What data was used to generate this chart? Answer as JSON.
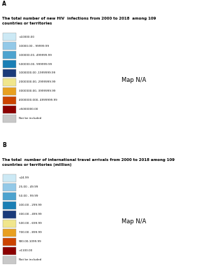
{
  "panel_A": {
    "label": "A",
    "title": "The total number of new HIV  infections from 2000 to 2018  among 109\ncountries or territories",
    "legend_entries": [
      {
        "label": "<10000.00",
        "color": "#cce9f5"
      },
      {
        "label": "10000.00 - 99999.99",
        "color": "#93c9e8"
      },
      {
        "label": "100000.00- 499999.99",
        "color": "#4da3cf"
      },
      {
        "label": "500000.00- 999999.99",
        "color": "#1a7fb5"
      },
      {
        "label": "1000000.00 -1999999.99",
        "color": "#1a3a7a"
      },
      {
        "label": "2000000.00- 2999999.99",
        "color": "#f0e68c"
      },
      {
        "label": "3000000.00- 3999999.99",
        "color": "#e8a020"
      },
      {
        "label": "4000000.000- 4999999.99",
        "color": "#cc4400"
      },
      {
        "label": ">5000000.00",
        "color": "#8b0000"
      },
      {
        "label": "Not be included",
        "color": "#c8c8c8"
      }
    ],
    "country_colors": {
      "South Africa": "#8b0000",
      "Nigeria": "#cc4400",
      "Mozambique": "#e8a020",
      "Tanzania": "#f0e68c",
      "United States of America": "#1a7fb5",
      "Kenya": "#1a3a7a",
      "Zimbabwe": "#1a3a7a",
      "Zambia": "#1a3a7a",
      "Uganda": "#1a3a7a",
      "Cameroon": "#1a7fb5",
      "Malawi": "#1a7fb5",
      "Ethiopia": "#1a7fb5",
      "India": "#1a7fb5",
      "Brazil": "#4da3cf",
      "Russia": "#4da3cf",
      "China": "#4da3cf",
      "Indonesia": "#4da3cf",
      "Thailand": "#4da3cf",
      "Dem. Rep. Congo": "#4da3cf",
      "Angola": "#4da3cf",
      "Botswana": "#4da3cf",
      "Ghana": "#4da3cf",
      "Ivory Coast": "#4da3cf",
      "Lesotho": "#4da3cf",
      "Eswatini": "#4da3cf",
      "Namibia": "#4da3cf",
      "Rwanda": "#4da3cf",
      "Burundi": "#4da3cf",
      "Canada": "#93c9e8",
      "Mexico": "#93c9e8",
      "France": "#93c9e8",
      "Germany": "#93c9e8",
      "United Kingdom": "#93c9e8",
      "Spain": "#93c9e8",
      "Italy": "#93c9e8",
      "Ukraine": "#93c9e8",
      "Argentina": "#93c9e8",
      "Colombia": "#93c9e8",
      "Peru": "#93c9e8",
      "Venezuela": "#93c9e8",
      "Myanmar": "#93c9e8",
      "Vietnam": "#93c9e8",
      "Papua New Guinea": "#93c9e8",
      "Sudan": "#93c9e8",
      "South Sudan": "#93c9e8",
      "Somalia": "#93c9e8",
      "Chad": "#93c9e8",
      "Niger": "#93c9e8",
      "Mali": "#93c9e8",
      "Senegal": "#93c9e8",
      "Burkina Faso": "#93c9e8",
      "Togo": "#93c9e8",
      "Benin": "#93c9e8",
      "Gabon": "#93c9e8",
      "Congo": "#93c9e8",
      "Central African Republic": "#93c9e8",
      "Liberia": "#93c9e8",
      "Sierra Leone": "#93c9e8",
      "Guinea": "#93c9e8",
      "Eritrea": "#93c9e8",
      "Djibouti": "#93c9e8",
      "Japan": "#cce9f5",
      "South Korea": "#cce9f5",
      "Australia": "#cce9f5",
      "New Zealand": "#cce9f5",
      "Norway": "#cce9f5",
      "Sweden": "#cce9f5",
      "Finland": "#cce9f5",
      "Denmark": "#cce9f5",
      "Netherlands": "#cce9f5",
      "Belgium": "#cce9f5",
      "Switzerland": "#cce9f5",
      "Austria": "#cce9f5",
      "Poland": "#cce9f5",
      "Czech Republic": "#cce9f5",
      "Czechia": "#cce9f5",
      "Portugal": "#cce9f5",
      "Greece": "#cce9f5",
      "Romania": "#cce9f5",
      "Morocco": "#cce9f5",
      "Tunisia": "#cce9f5",
      "Algeria": "#cce9f5",
      "Egypt": "#cce9f5",
      "Saudi Arabia": "#cce9f5",
      "Iran": "#cce9f5",
      "Turkey": "#cce9f5",
      "Pakistan": "#cce9f5",
      "Philippines": "#cce9f5",
      "Malaysia": "#cce9f5",
      "Belarus": "#cce9f5",
      "Hungary": "#cce9f5",
      "Slovakia": "#cce9f5",
      "Bulgaria": "#cce9f5",
      "Croatia": "#cce9f5",
      "Serbia": "#cce9f5",
      "Bosnia and Herzegovina": "#cce9f5",
      "Albania": "#cce9f5",
      "North Macedonia": "#cce9f5",
      "Moldova": "#cce9f5",
      "Latvia": "#cce9f5",
      "Lithuania": "#cce9f5",
      "Estonia": "#cce9f5",
      "Iceland": "#cce9f5",
      "Ireland": "#cce9f5",
      "Luxembourg": "#cce9f5",
      "Jordan": "#cce9f5",
      "Lebanon": "#cce9f5",
      "Israel": "#cce9f5",
      "Yemen": "#cce9f5",
      "Oman": "#cce9f5",
      "United Arab Emirates": "#cce9f5",
      "Kuwait": "#cce9f5",
      "Qatar": "#cce9f5",
      "Bahrain": "#cce9f5",
      "Kazakhstan": "#cce9f5",
      "Uzbekistan": "#cce9f5",
      "Kyrgyzstan": "#cce9f5",
      "Tajikistan": "#cce9f5",
      "Turkmenistan": "#cce9f5",
      "Afghanistan": "#cce9f5",
      "Sri Lanka": "#cce9f5",
      "Nepal": "#cce9f5",
      "Bangladesh": "#cce9f5",
      "Cambodia": "#cce9f5",
      "Laos": "#cce9f5",
      "Taiwan": "#cce9f5",
      "Mongolia": "#cce9f5",
      "North Korea": "#cce9f5",
      "Cuba": "#cce9f5",
      "Haiti": "#cce9f5",
      "Dominican Republic": "#cce9f5",
      "Jamaica": "#cce9f5",
      "Trinidad and Tobago": "#cce9f5",
      "Bolivia": "#cce9f5",
      "Ecuador": "#cce9f5",
      "Paraguay": "#cce9f5",
      "Uruguay": "#cce9f5",
      "Chile": "#cce9f5",
      "Honduras": "#cce9f5",
      "Guatemala": "#cce9f5",
      "Nicaragua": "#cce9f5",
      "Costa Rica": "#cce9f5",
      "Panama": "#cce9f5",
      "El Salvador": "#cce9f5",
      "Belize": "#cce9f5",
      "Libya": "#cce9f5",
      "Mauritania": "#cce9f5",
      "Western Sahara": "#cce9f5",
      "Madagascar": "#cce9f5",
      "Mauritius": "#cce9f5"
    }
  },
  "panel_B": {
    "label": "B",
    "title": "The total  number of international travel arrivals from 2000 to 2018 among 109\ncountries or territories (million)",
    "legend_entries": [
      {
        "label": "<24.99",
        "color": "#cce9f5"
      },
      {
        "label": "25.00 - 49.99",
        "color": "#93c9e8"
      },
      {
        "label": "50.00 - 99.99",
        "color": "#4da3cf"
      },
      {
        "label": "100.00 - 299.99",
        "color": "#1a7fb5"
      },
      {
        "label": "300.00 - 499.99",
        "color": "#1a3a7a"
      },
      {
        "label": "500.00 - 699.99",
        "color": "#f0e68c"
      },
      {
        "label": "700.00 - 899.99",
        "color": "#e8a020"
      },
      {
        "label": "900.00-1099.99",
        "color": "#cc4400"
      },
      {
        "label": ">1100.00",
        "color": "#8b0000"
      },
      {
        "label": "Not be included",
        "color": "#c8c8c8"
      }
    ],
    "country_colors": {
      "United States of America": "#8b0000",
      "China": "#cc4400",
      "France": "#f0e68c",
      "Spain": "#1a3a7a",
      "Germany": "#1a3a7a",
      "Italy": "#1a3a7a",
      "United Kingdom": "#1a3a7a",
      "Australia": "#1a7fb5",
      "Canada": "#1a7fb5",
      "Mexico": "#1a7fb5",
      "Russia": "#1a7fb5",
      "Turkey": "#1a7fb5",
      "Thailand": "#4da3cf",
      "Japan": "#1a7fb5",
      "Brazil": "#4da3cf",
      "Austria": "#4da3cf",
      "Netherlands": "#4da3cf",
      "Portugal": "#4da3cf",
      "Greece": "#4da3cf",
      "Saudi Arabia": "#4da3cf",
      "Malaysia": "#4da3cf",
      "South Korea": "#4da3cf",
      "India": "#4da3cf",
      "Poland": "#4da3cf",
      "Morocco": "#4da3cf",
      "Hungary": "#4da3cf",
      "Ukraine": "#93c9e8",
      "Argentina": "#93c9e8",
      "Egypt": "#93c9e8",
      "South Africa": "#93c9e8",
      "Tunisia": "#93c9e8",
      "Iran": "#93c9e8",
      "Indonesia": "#93c9e8",
      "Sweden": "#93c9e8",
      "Belgium": "#93c9e8",
      "Switzerland": "#93c9e8",
      "Czech Republic": "#93c9e8",
      "Czechia": "#93c9e8",
      "Denmark": "#93c9e8",
      "Colombia": "#93c9e8",
      "Peru": "#93c9e8",
      "Vietnam": "#93c9e8",
      "Philippines": "#93c9e8",
      "Algeria": "#93c9e8",
      "Croatia": "#93c9e8",
      "Romania": "#cce9f5",
      "Kazakhstan": "#93c9e8",
      "Jordan": "#93c9e8",
      "Lebanon": "#93c9e8",
      "Israel": "#93c9e8",
      "United Arab Emirates": "#93c9e8",
      "Singapore": "#93c9e8",
      "Norway": "#cce9f5",
      "Finland": "#cce9f5",
      "New Zealand": "#cce9f5",
      "Venezuela": "#cce9f5",
      "Chile": "#cce9f5",
      "Kenya": "#cce9f5",
      "Nigeria": "#cce9f5",
      "Tanzania": "#cce9f5",
      "Ethiopia": "#cce9f5",
      "Ghana": "#cce9f5",
      "Myanmar": "#cce9f5",
      "Pakistan": "#cce9f5",
      "Sudan": "#cce9f5",
      "Bolivia": "#cce9f5",
      "Ecuador": "#cce9f5",
      "Paraguay": "#cce9f5",
      "Uruguay": "#cce9f5",
      "Honduras": "#cce9f5",
      "Guatemala": "#cce9f5",
      "Nicaragua": "#cce9f5",
      "Costa Rica": "#cce9f5",
      "Panama": "#cce9f5",
      "El Salvador": "#cce9f5",
      "Cuba": "#cce9f5",
      "Dominican Republic": "#cce9f5",
      "Jamaica": "#cce9f5",
      "Haiti": "#cce9f5",
      "Iceland": "#cce9f5",
      "Ireland": "#cce9f5",
      "Luxembourg": "#cce9f5",
      "Slovakia": "#cce9f5",
      "Bulgaria": "#cce9f5",
      "Serbia": "#cce9f5",
      "Bosnia and Herzegovina": "#cce9f5",
      "Albania": "#cce9f5",
      "Latvia": "#cce9f5",
      "Lithuania": "#cce9f5",
      "Estonia": "#cce9f5",
      "Belarus": "#cce9f5",
      "Moldova": "#cce9f5",
      "North Macedonia": "#cce9f5",
      "Oman": "#cce9f5",
      "Qatar": "#cce9f5",
      "Kuwait": "#cce9f5",
      "Bahrain": "#cce9f5",
      "Yemen": "#cce9f5",
      "Iraq": "#cce9f5",
      "Libya": "#cce9f5",
      "Uzbekistan": "#cce9f5",
      "Kyrgyzstan": "#cce9f5",
      "Tajikistan": "#cce9f5",
      "Turkmenistan": "#cce9f5",
      "Afghanistan": "#cce9f5",
      "Sri Lanka": "#cce9f5",
      "Nepal": "#cce9f5",
      "Bangladesh": "#cce9f5",
      "Cambodia": "#cce9f5",
      "Laos": "#cce9f5",
      "Mongolia": "#cce9f5",
      "Madagascar": "#cce9f5",
      "Mozambique": "#cce9f5",
      "Angola": "#cce9f5",
      "Zambia": "#cce9f5",
      "Zimbabwe": "#cce9f5",
      "Malawi": "#cce9f5",
      "Ivory Coast": "#cce9f5",
      "Senegal": "#cce9f5",
      "Cameroon": "#cce9f5",
      "Uganda": "#cce9f5",
      "Rwanda": "#cce9f5",
      "Dem. Rep. Congo": "#cce9f5",
      "Congo": "#cce9f5",
      "Gabon": "#cce9f5",
      "Niger": "#cce9f5",
      "Mali": "#cce9f5",
      "Burkina Faso": "#cce9f5",
      "Guinea": "#cce9f5",
      "Liberia": "#cce9f5",
      "Sierra Leone": "#cce9f5",
      "Togo": "#cce9f5",
      "Benin": "#cce9f5",
      "Mauritania": "#cce9f5",
      "Eritrea": "#cce9f5",
      "Somalia": "#cce9f5",
      "Chad": "#cce9f5",
      "Central African Republic": "#cce9f5",
      "South Sudan": "#cce9f5",
      "Burundi": "#cce9f5",
      "Lesotho": "#cce9f5",
      "Eswatini": "#cce9f5",
      "Namibia": "#cce9f5",
      "Botswana": "#cce9f5",
      "Papua New Guinea": "#cce9f5"
    }
  },
  "background_color": "#ffffff",
  "map_ocean_color": "#ffffff",
  "map_land_default": "#c8c8c8",
  "figsize": [
    2.95,
    4.0
  ],
  "dpi": 100
}
